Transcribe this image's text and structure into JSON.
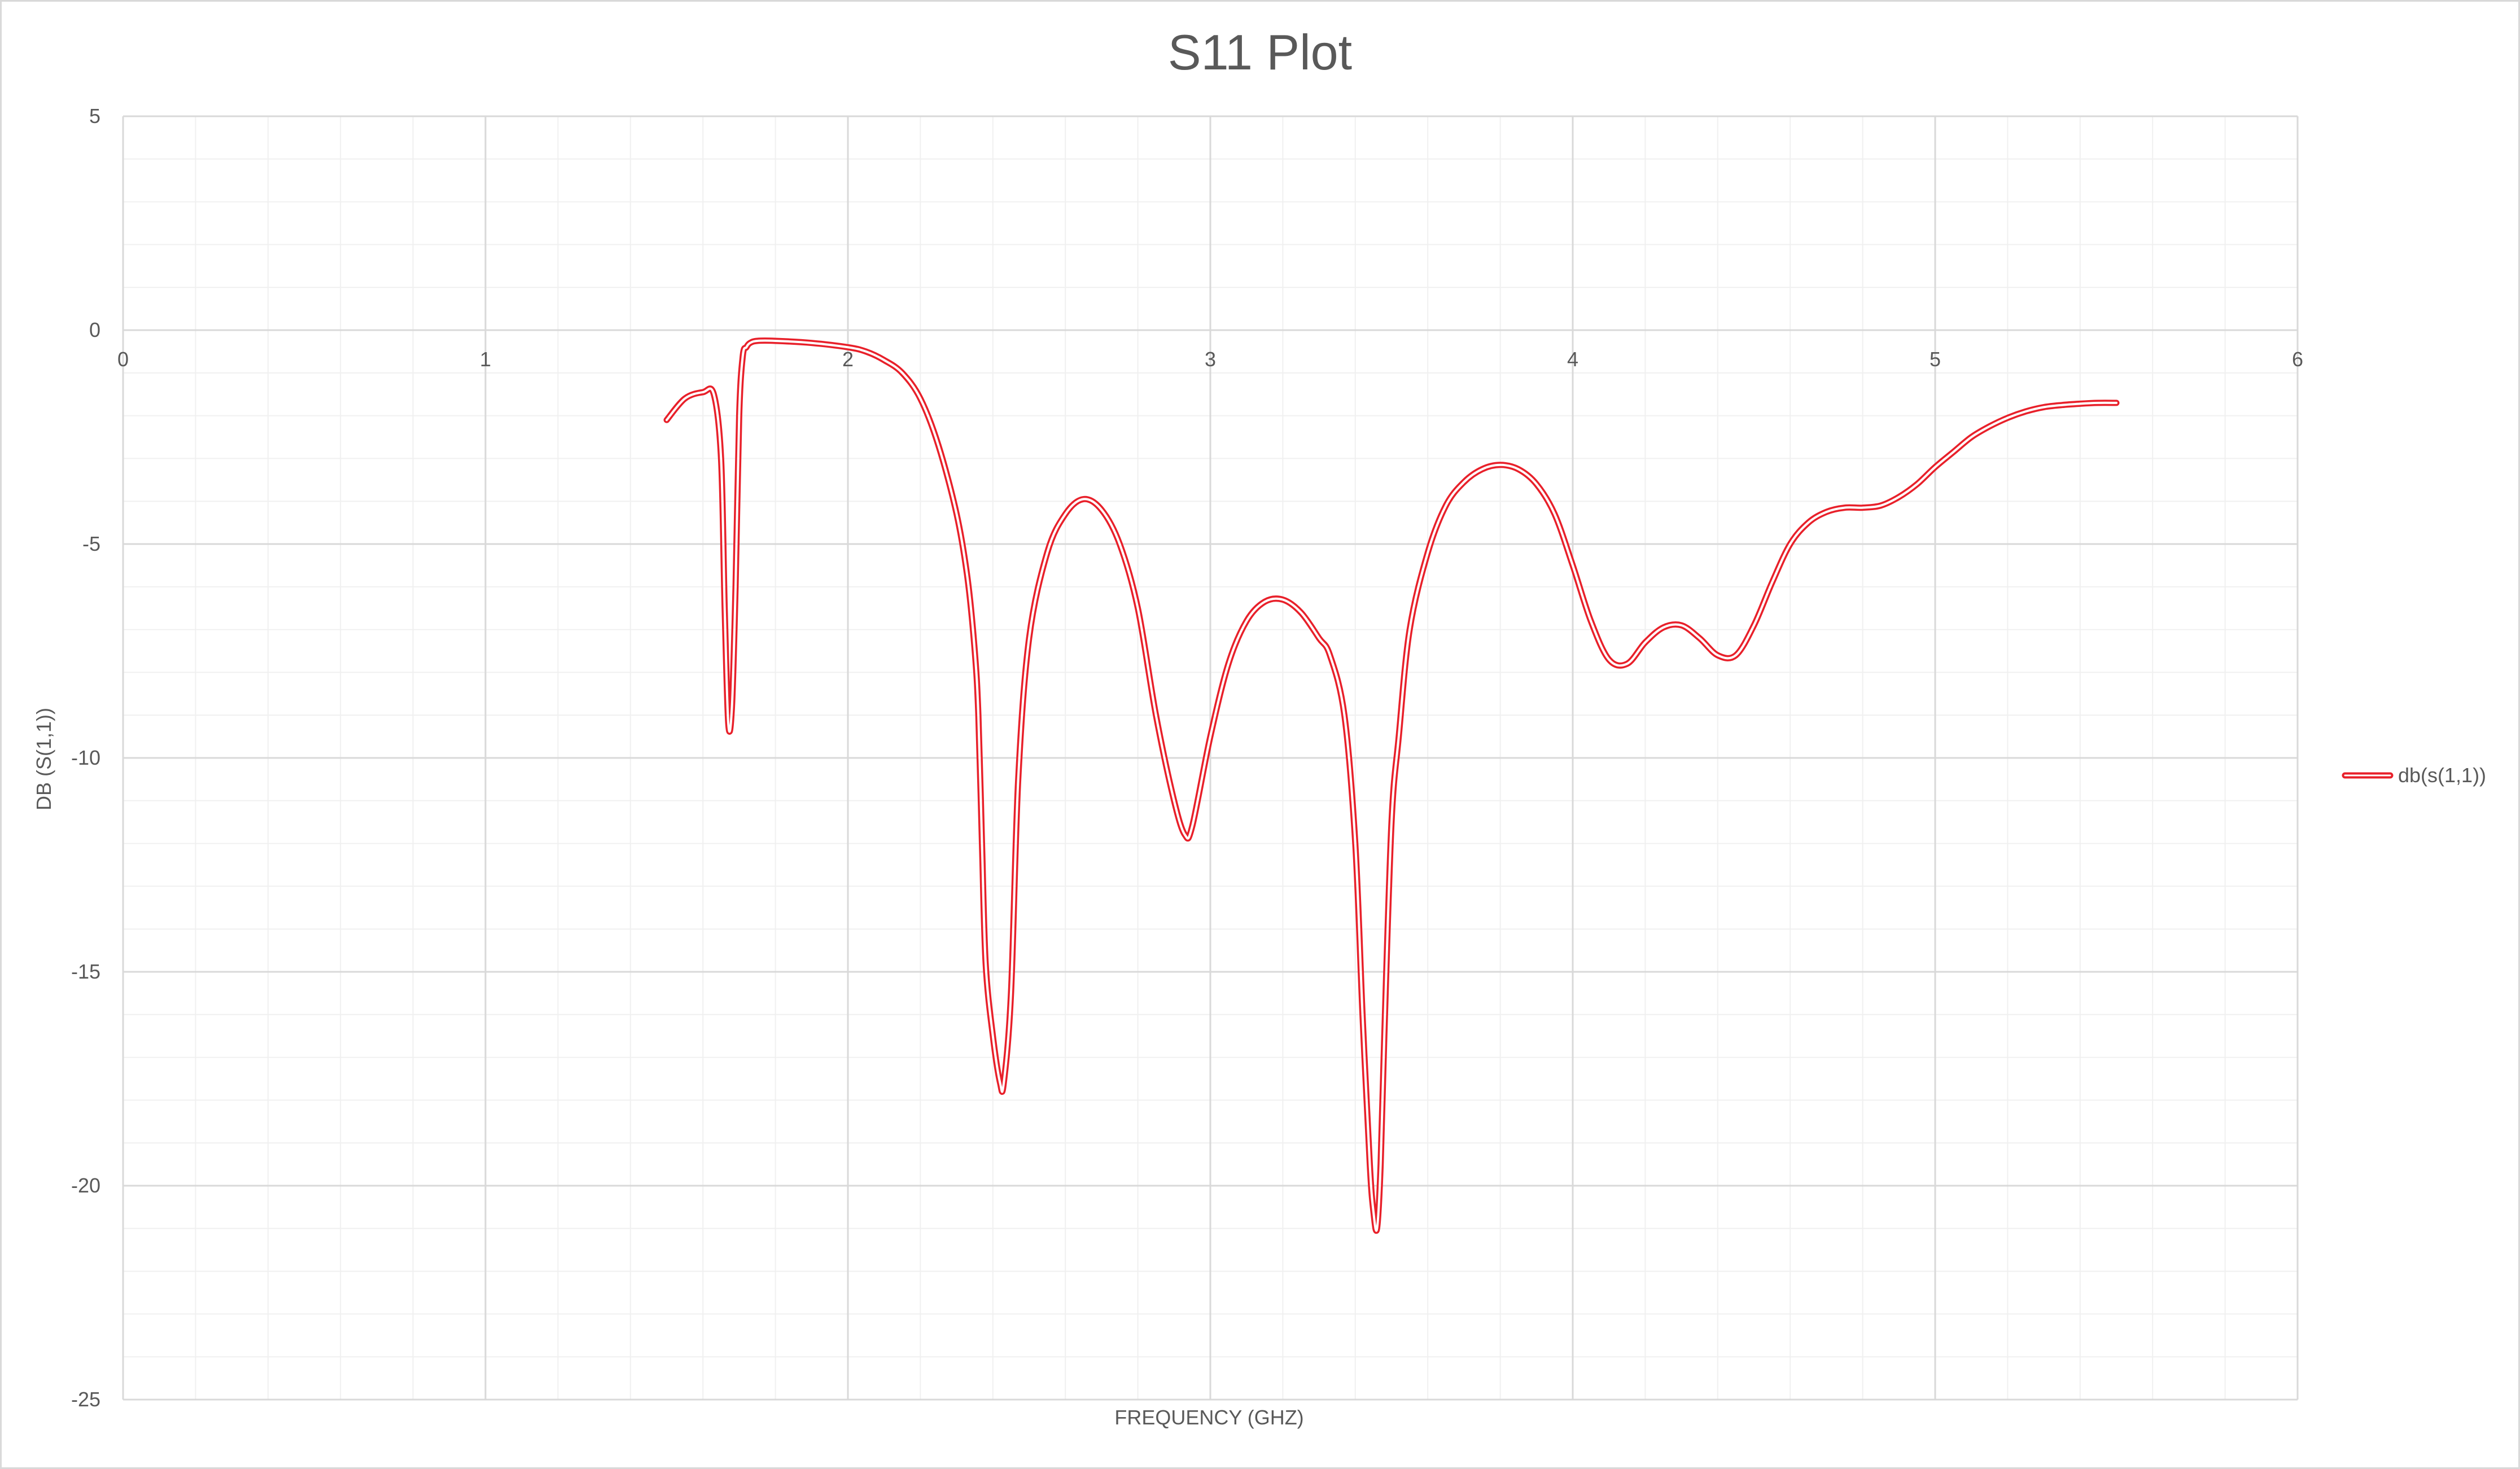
{
  "chart_data": {
    "type": "line",
    "title": "S11 Plot",
    "xlabel": "FREQUENCY (GHZ)",
    "ylabel": "DB (S(1,1))",
    "xlim": [
      0,
      6
    ],
    "ylim": [
      -25,
      5
    ],
    "x_ticks": [
      "0",
      "1",
      "2",
      "3",
      "4",
      "5",
      "6"
    ],
    "y_ticks": [
      "5",
      "0",
      "-5",
      "-10",
      "-15",
      "-20",
      "-25"
    ],
    "grid": true,
    "legend_position": "right",
    "series": [
      {
        "name": "db(s(1,1))",
        "color": "#e8202a",
        "x": [
          1.5,
          1.55,
          1.6,
          1.63,
          1.65,
          1.66,
          1.67,
          1.68,
          1.69,
          1.7,
          1.71,
          1.72,
          1.73,
          1.75,
          1.8,
          1.9,
          2.0,
          2.05,
          2.1,
          2.15,
          2.2,
          2.25,
          2.3,
          2.33,
          2.35,
          2.36,
          2.37,
          2.38,
          2.4,
          2.42,
          2.43,
          2.45,
          2.47,
          2.5,
          2.55,
          2.6,
          2.65,
          2.7,
          2.75,
          2.8,
          2.85,
          2.9,
          2.93,
          2.95,
          3.0,
          3.05,
          3.1,
          3.15,
          3.2,
          3.25,
          3.3,
          3.33,
          3.37,
          3.4,
          3.42,
          3.44,
          3.45,
          3.46,
          3.47,
          3.48,
          3.5,
          3.52,
          3.55,
          3.6,
          3.65,
          3.7,
          3.75,
          3.8,
          3.85,
          3.9,
          3.95,
          4.0,
          4.05,
          4.1,
          4.15,
          4.2,
          4.25,
          4.3,
          4.35,
          4.4,
          4.45,
          4.5,
          4.55,
          4.6,
          4.65,
          4.7,
          4.75,
          4.8,
          4.85,
          4.9,
          4.95,
          5.0,
          5.05,
          5.1,
          5.15,
          5.2,
          5.25,
          5.3,
          5.35,
          5.4,
          5.45,
          5.5
        ],
        "values": [
          -2.1,
          -1.6,
          -1.45,
          -1.5,
          -3.0,
          -6.5,
          -9.2,
          -8.8,
          -6.0,
          -2.0,
          -0.6,
          -0.4,
          -0.3,
          -0.25,
          -0.25,
          -0.3,
          -0.4,
          -0.5,
          -0.7,
          -1.0,
          -1.6,
          -2.7,
          -4.3,
          -5.8,
          -7.5,
          -9.0,
          -12.0,
          -14.8,
          -16.5,
          -17.6,
          -17.6,
          -15.5,
          -10.5,
          -7.2,
          -5.2,
          -4.3,
          -3.95,
          -4.2,
          -5.0,
          -6.5,
          -9.0,
          -11.0,
          -11.8,
          -11.6,
          -9.5,
          -7.8,
          -6.8,
          -6.35,
          -6.3,
          -6.6,
          -7.2,
          -7.6,
          -9.0,
          -12.0,
          -16.0,
          -19.5,
          -20.6,
          -21.0,
          -19.5,
          -16.5,
          -11.5,
          -9.5,
          -7.0,
          -5.2,
          -4.1,
          -3.55,
          -3.25,
          -3.15,
          -3.25,
          -3.6,
          -4.3,
          -5.5,
          -6.8,
          -7.7,
          -7.8,
          -7.3,
          -6.95,
          -6.9,
          -7.2,
          -7.6,
          -7.6,
          -6.9,
          -5.9,
          -5.0,
          -4.5,
          -4.25,
          -4.15,
          -4.15,
          -4.1,
          -3.9,
          -3.6,
          -3.2,
          -2.85,
          -2.5,
          -2.25,
          -2.05,
          -1.9,
          -1.8,
          -1.75,
          -1.72,
          -1.7,
          -1.7
        ]
      }
    ]
  }
}
